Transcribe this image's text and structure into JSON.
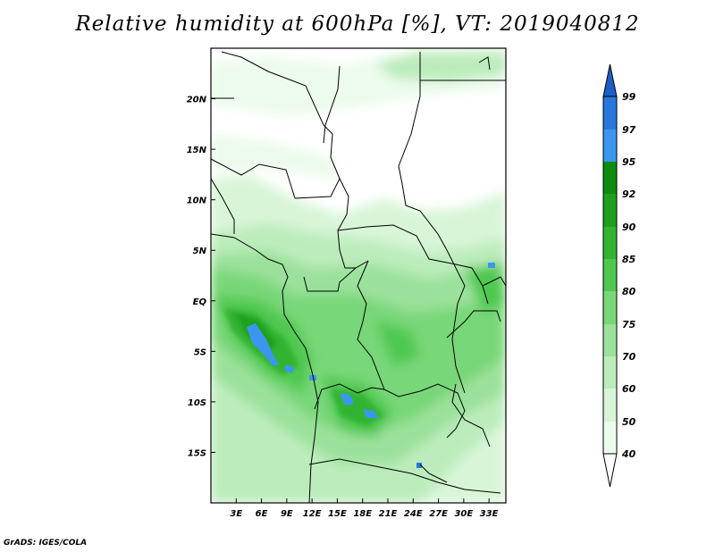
{
  "title": "Relative humidity at 600hPa [%], VT: 2019040812",
  "credit": "GrADS: IGES/COLA",
  "map": {
    "lon_range": [
      0,
      35
    ],
    "lat_range": [
      -20,
      25
    ],
    "y_ticks": [
      "20N",
      "15N",
      "10N",
      "5N",
      "EQ",
      "5S",
      "10S",
      "15S"
    ],
    "y_tick_values": [
      20,
      15,
      10,
      5,
      0,
      -5,
      -10,
      -15
    ],
    "x_ticks": [
      "3E",
      "6E",
      "9E",
      "12E",
      "15E",
      "18E",
      "21E",
      "24E",
      "27E",
      "30E",
      "33E"
    ],
    "x_tick_values": [
      3,
      6,
      9,
      12,
      15,
      18,
      21,
      24,
      27,
      30,
      33
    ]
  },
  "colorbar": {
    "labels": [
      "99",
      "97",
      "95",
      "92",
      "90",
      "85",
      "80",
      "75",
      "70",
      "60",
      "50",
      "40"
    ],
    "colors": {
      "above_99": "#1e5ec4",
      "97_99": "#2878dc",
      "95_97": "#3c96f0",
      "92_95": "#0f8c0f",
      "90_92": "#1ea01e",
      "85_90": "#32b432",
      "80_85": "#50c850",
      "75_80": "#78d778",
      "70_75": "#9be19b",
      "60_70": "#bcecbc",
      "50_60": "#d8f5d8",
      "40_50": "#ecfbec",
      "below_40": "#ffffff"
    }
  }
}
